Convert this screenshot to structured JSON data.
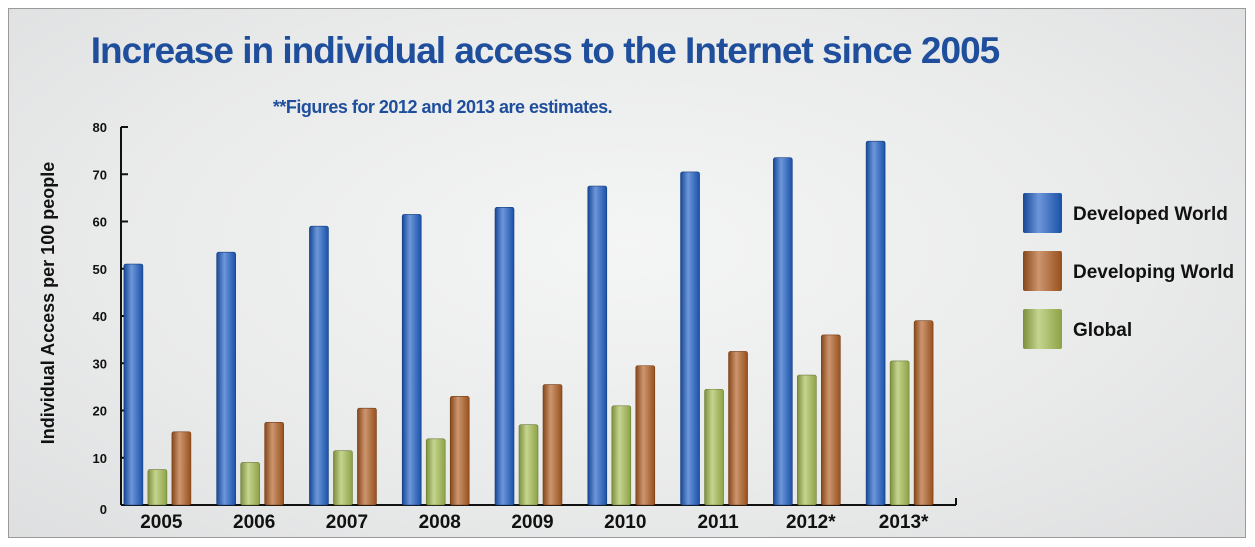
{
  "chart_data": {
    "type": "bar",
    "title": "Increase in individual access to the Internet since 2005",
    "subtitle": "**Figures for 2012 and 2013 are estimates.",
    "ylabel": "Individual Access per 100 people",
    "xlabel": "",
    "ylim": [
      0,
      80
    ],
    "yticks": [
      0,
      10,
      20,
      30,
      40,
      50,
      60,
      70,
      80
    ],
    "categories": [
      "2005",
      "2006",
      "2007",
      "2008",
      "2009",
      "2010",
      "2011",
      "2012*",
      "2013*"
    ],
    "series": [
      {
        "name": "Developed World",
        "color": "#1f5fc6",
        "values": [
          51,
          53.5,
          59,
          61.5,
          63,
          67.5,
          70.5,
          73.5,
          77
        ]
      },
      {
        "name": "Global",
        "color": "#a6bf52",
        "values": [
          7.5,
          9,
          11.5,
          14,
          17,
          21,
          24.5,
          27.5,
          30.5
        ]
      },
      {
        "name": "Developing World",
        "color": "#b25e22",
        "values": [
          15.5,
          17.5,
          20.5,
          23,
          25.5,
          29.5,
          32.5,
          36,
          39
        ]
      }
    ],
    "legend_order": [
      "Developed World",
      "Developing World",
      "Global"
    ],
    "legend_position": "right",
    "grid": false
  }
}
